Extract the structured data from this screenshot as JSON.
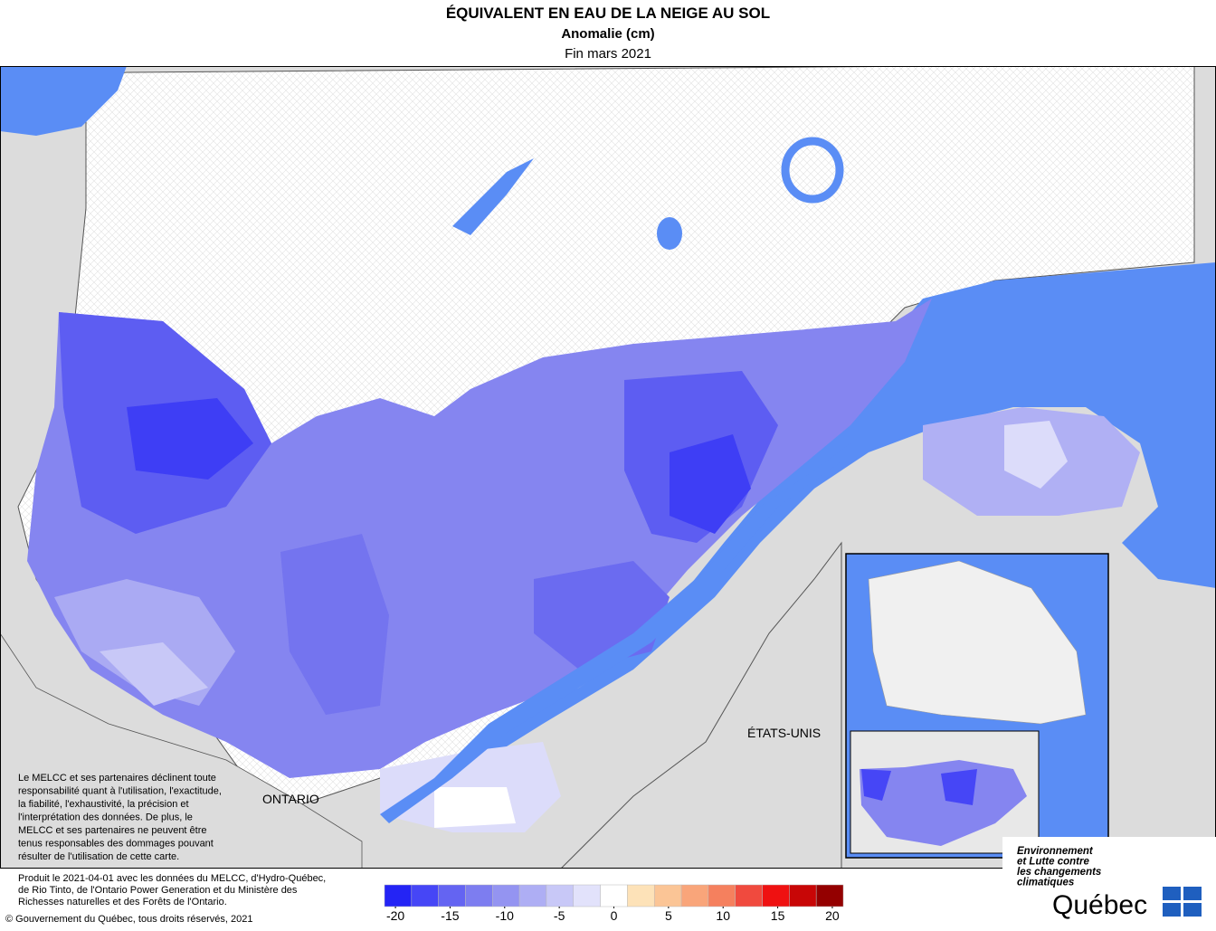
{
  "header": {
    "title": "ÉQUIVALENT EN EAU DE LA NEIGE AU SOL",
    "subtitle": "Anomalie (cm)",
    "date": "Fin mars 2021"
  },
  "map_labels": {
    "ontario": "ONTARIO",
    "usa": "ÉTATS-UNIS"
  },
  "disclaimer": [
    "Le MELCC et ses partenaires déclinent toute",
    "responsabilité quant à l'utilisation, l'exactitude,",
    "la fiabilité, l'exhaustivité, la précision et",
    "l'interprétation des données. De plus, le",
    "MELCC et ses partenaires ne peuvent être",
    "tenus responsables des dommages pouvant",
    "résulter de l'utilisation de cette carte."
  ],
  "footer": {
    "credits": [
      "Produit le 2021-04-01 avec les données du MELCC, d'Hydro-Québec,",
      "de Rio Tinto, de l'Ontario Power Generation et du Ministère des",
      "Richesses naturelles et des Forêts de l'Ontario."
    ],
    "copyright": "© Gouvernement du Québec, tous droits réservés, 2021"
  },
  "logo": {
    "ministry": [
      "Environnement",
      "et Lutte contre",
      "les changements",
      "climatiques"
    ],
    "name": "Québec"
  },
  "colorbar": {
    "lim": [
      -21,
      21
    ],
    "ticks": [
      -20,
      -15,
      -10,
      -5,
      0,
      5,
      10,
      15,
      20
    ],
    "colors": [
      "#2424f5",
      "#4646f6",
      "#6464f2",
      "#7d7df0",
      "#9494f1",
      "#aeaef4",
      "#c8c8f7",
      "#e2e2fb",
      "#ffffff",
      "#fde2b8",
      "#fbc596",
      "#f9a57a",
      "#f5805e",
      "#f04a3e",
      "#ef1111",
      "#c80606",
      "#940000"
    ]
  }
}
